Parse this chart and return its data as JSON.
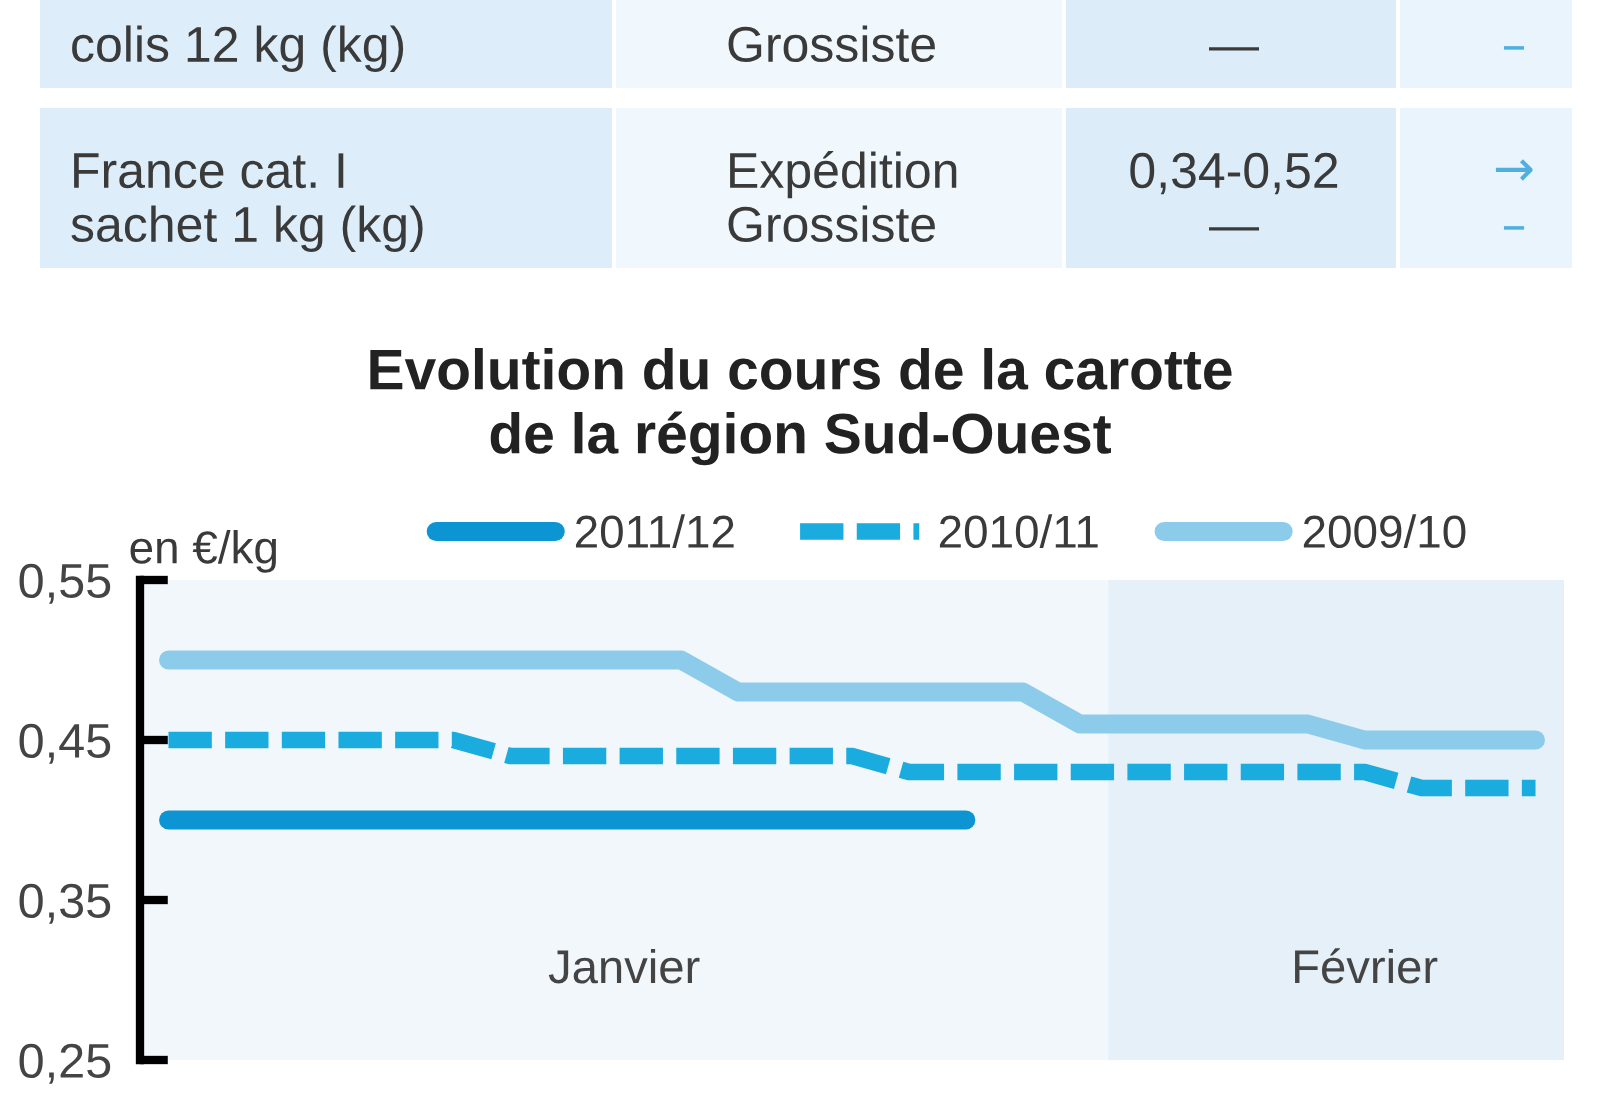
{
  "chart_data": {
    "type": "line",
    "title": "Evolution du cours de la carotte\nde la région Sud-Ouest",
    "ylabel": "en €/kg",
    "categories": [
      null,
      null,
      null,
      null,
      null,
      null,
      null,
      null,
      "Janvier",
      null,
      null,
      null,
      null,
      null,
      null,
      null,
      null,
      null,
      null,
      null,
      null,
      "Février",
      null,
      null,
      null
    ],
    "series": [
      {
        "name": "2011/12",
        "color": "#0d95d3",
        "line_style": "solid",
        "values": [
          0.4,
          0.4,
          0.4,
          0.4,
          0.4,
          0.4,
          0.4,
          0.4,
          0.4,
          0.4,
          0.4,
          0.4,
          0.4,
          0.4,
          0.4,
          null,
          null,
          null,
          null,
          null,
          null,
          null,
          null,
          null,
          null
        ]
      },
      {
        "name": "2010/11",
        "color": "#1aabdf",
        "line_style": "dashed",
        "values": [
          0.45,
          0.45,
          0.45,
          0.45,
          0.45,
          0.45,
          0.44,
          0.44,
          0.44,
          0.44,
          0.44,
          0.44,
          0.44,
          0.43,
          0.43,
          0.43,
          0.43,
          0.43,
          0.43,
          0.43,
          0.43,
          0.43,
          0.42,
          0.42,
          0.42
        ]
      },
      {
        "name": "2009/10",
        "color": "#8ccbea",
        "line_style": "solid",
        "values": [
          0.5,
          0.5,
          0.5,
          0.5,
          0.5,
          0.5,
          0.5,
          0.5,
          0.5,
          0.5,
          0.48,
          0.48,
          0.48,
          0.48,
          0.48,
          0.48,
          0.46,
          0.46,
          0.46,
          0.46,
          0.46,
          0.45,
          0.45,
          0.45,
          0.45
        ]
      }
    ],
    "ylim": [
      0.25,
      0.55
    ],
    "yticks": [
      {
        "value": 0.55,
        "label": "0,55"
      },
      {
        "value": 0.45,
        "label": "0,45"
      },
      {
        "value": 0.35,
        "label": "0,35"
      },
      {
        "value": 0.25,
        "label": "0,25"
      }
    ],
    "legend": "top",
    "annotations": [
      "colis 12 kg (kg)",
      "Grossiste",
      "—",
      "–",
      "France cat. I\nsachet 1 kg (kg)",
      "Expédition\nGrossiste",
      "0,34-0,52\n—",
      "→\n–"
    ]
  }
}
